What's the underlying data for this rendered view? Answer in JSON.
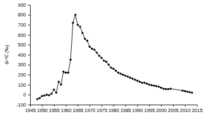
{
  "chart_data": {
    "type": "line",
    "y_label": "Δ¹⁴C (‰)",
    "x": [
      1948,
      1949,
      1950,
      1951,
      1952,
      1953,
      1954,
      1955,
      1956,
      1957,
      1958,
      1959,
      1960,
      1961,
      1962,
      1963,
      1964,
      1965,
      1966,
      1967,
      1968,
      1969,
      1970,
      1971,
      1972,
      1973,
      1974,
      1975,
      1976,
      1977,
      1978,
      1979,
      1980,
      1981,
      1982,
      1983,
      1984,
      1985,
      1986,
      1987,
      1988,
      1989,
      1990,
      1991,
      1992,
      1993,
      1994,
      1995,
      1996,
      1997,
      1998,
      1999,
      2000,
      2001,
      2002,
      2003,
      2004,
      2009,
      2010,
      2011,
      2012,
      2013
    ],
    "values": [
      -45,
      -35,
      -15,
      -10,
      0,
      -5,
      10,
      50,
      20,
      130,
      100,
      230,
      220,
      220,
      350,
      720,
      800,
      700,
      680,
      620,
      560,
      540,
      480,
      460,
      450,
      420,
      390,
      370,
      340,
      330,
      300,
      270,
      260,
      240,
      220,
      210,
      200,
      190,
      180,
      170,
      160,
      150,
      140,
      130,
      120,
      120,
      110,
      100,
      95,
      90,
      85,
      80,
      70,
      60,
      55,
      55,
      60,
      40,
      35,
      30,
      25,
      20
    ],
    "color": "#000000",
    "marker": "circle",
    "line_style": "solid",
    "xlim": [
      1945,
      2015
    ],
    "xticks": [
      1945,
      1950,
      1955,
      1960,
      1965,
      1970,
      1975,
      1980,
      1985,
      1990,
      1995,
      2000,
      2005,
      2010,
      2015
    ],
    "ylim": [
      -100,
      900
    ],
    "yticks": [
      -100,
      0,
      100,
      200,
      300,
      400,
      500,
      600,
      700,
      800,
      900
    ]
  }
}
